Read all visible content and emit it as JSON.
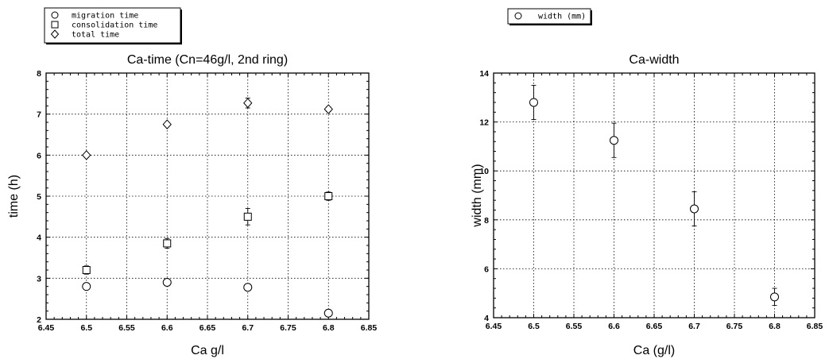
{
  "chart_data": [
    {
      "type": "scatter",
      "title": "Ca-time (Cn=46g/l, 2nd ring)",
      "xlabel": "Ca g/l",
      "ylabel": "time (h)",
      "xlim": [
        6.45,
        6.85
      ],
      "ylim": [
        2,
        8
      ],
      "x_ticks": [
        "6.45",
        "6.5",
        "6.55",
        "6.6",
        "6.65",
        "6.7",
        "6.75",
        "6.8",
        "6.85"
      ],
      "y_ticks": [
        "2",
        "3",
        "4",
        "5",
        "6",
        "7",
        "8"
      ],
      "grid": true,
      "legend_position": "above-left",
      "series": [
        {
          "name": "migration time",
          "marker": "circle",
          "x": [
            6.5,
            6.6,
            6.7,
            6.8
          ],
          "y": [
            2.8,
            2.9,
            2.78,
            2.15
          ],
          "err": [
            0,
            0,
            0,
            0
          ]
        },
        {
          "name": "consolidation time",
          "marker": "square",
          "x": [
            6.5,
            6.6,
            6.7,
            6.8
          ],
          "y": [
            3.2,
            3.85,
            4.5,
            5.0
          ],
          "err": [
            0.1,
            0.12,
            0.2,
            0.1
          ]
        },
        {
          "name": "total time",
          "marker": "diamond",
          "x": [
            6.5,
            6.6,
            6.7,
            6.8
          ],
          "y": [
            6.0,
            6.75,
            7.27,
            7.12
          ],
          "err": [
            0.05,
            0.05,
            0.12,
            0.06
          ]
        }
      ]
    },
    {
      "type": "scatter",
      "title": "Ca-width",
      "xlabel": "Ca (g/l)",
      "ylabel": "width (mm)",
      "xlim": [
        6.45,
        6.85
      ],
      "ylim": [
        4,
        14
      ],
      "x_ticks": [
        "6.45",
        "6.5",
        "6.55",
        "6.6",
        "6.65",
        "6.7",
        "6.75",
        "6.8",
        "6.85"
      ],
      "y_ticks": [
        "4",
        "6",
        "8",
        "10",
        "12",
        "14"
      ],
      "grid": true,
      "legend_position": "above-left",
      "series": [
        {
          "name": "width (mm)",
          "marker": "circle",
          "x": [
            6.5,
            6.6,
            6.7,
            6.8
          ],
          "y": [
            12.8,
            11.25,
            8.45,
            4.85
          ],
          "err": [
            0.7,
            0.7,
            0.7,
            0.35
          ]
        }
      ]
    }
  ]
}
